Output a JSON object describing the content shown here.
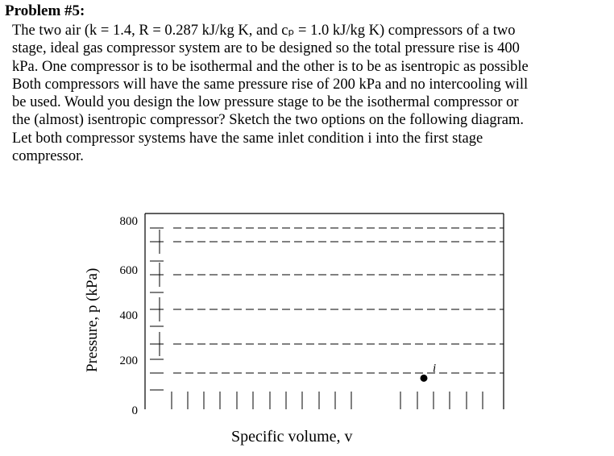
{
  "problem": {
    "title": "Problem #5:",
    "lines": [
      "The two air (k = 1.4, R = 0.287 kJ/kg K, and cₚ = 1.0 kJ/kg K) compressors of a two",
      "stage, ideal gas compressor system are to be designed so the total pressure rise is 400",
      "kPa.  One compressor is to be isothermal and the other is to be as isentropic as possible",
      "Both compressors will have the same pressure rise of 200 kPa and no intercooling will",
      "be used.  Would you design the low pressure stage to be the isothermal compressor or",
      "the (almost) isentropic compressor?  Sketch the two options on the following diagram.",
      "Let both compressor systems have the same inlet condition i into the first stage",
      "compressor."
    ]
  },
  "chart_data": {
    "type": "scatter",
    "ylabel": "Pressure, p (kPa)",
    "xlabel": "Specific volume, v",
    "yticks": [
      "800",
      "600",
      "400",
      "200",
      "0"
    ],
    "ylim": [
      0,
      800
    ],
    "grid": "dashed horizontal",
    "points": [
      {
        "label": "i",
        "y": 100
      }
    ]
  }
}
